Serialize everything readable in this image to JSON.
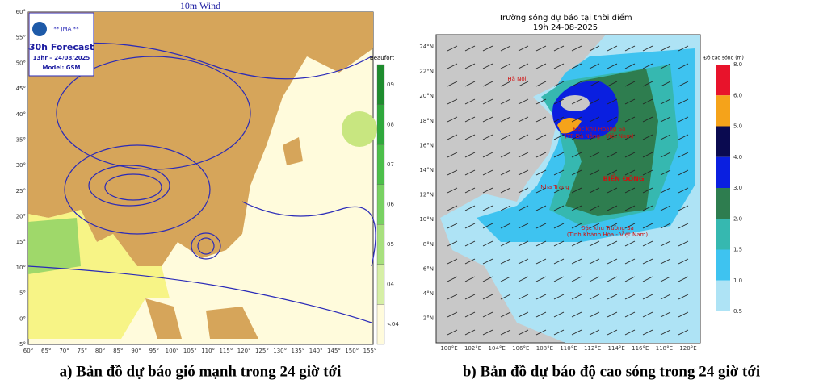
{
  "left_map": {
    "title": "10m Wind",
    "logo": {
      "agency": "** JMA **",
      "forecast": "30h Forecast",
      "time": "13hr – 24/08/2025",
      "model": "Model: GSM"
    },
    "legend": {
      "title": "Beaufort",
      "labels": [
        "09",
        "08",
        "07",
        "06",
        "05",
        "04",
        "<04"
      ]
    },
    "lat_labels": [
      "60°",
      "55°",
      "50°",
      "45°",
      "40°",
      "35°",
      "30°",
      "25°",
      "20°",
      "15°",
      "10°",
      "5°",
      "0°",
      "-5°"
    ],
    "lon_labels": [
      "60°",
      "65°",
      "70°",
      "75°",
      "80°",
      "85°",
      "90°",
      "95°",
      "100°",
      "105°",
      "110°",
      "115°",
      "120°",
      "125°",
      "130°",
      "135°",
      "140°",
      "145°",
      "150°",
      "155°"
    ],
    "caption": "a) Bản đồ dự báo gió mạnh trong 24 giờ tới"
  },
  "right_map": {
    "title": "Trường sóng dự báo tại thời điểm",
    "subtitle": "19h 24-08-2025",
    "lat_labels": [
      "24°N",
      "22°N",
      "20°N",
      "18°N",
      "16°N",
      "14°N",
      "12°N",
      "10°N",
      "8°N",
      "6°N",
      "4°N",
      "2°N"
    ],
    "lon_labels": [
      "100°E",
      "102°E",
      "104°E",
      "106°E",
      "108°E",
      "110°E",
      "112°E",
      "114°E",
      "116°E",
      "118°E",
      "120°E"
    ],
    "places": [
      "BIỂN ĐÔNG",
      "Đặc khu Hoàng Sa",
      "(TP Đà Nẵng - Việt Nam)",
      "Đặc khu Trường Sa",
      "(Tỉnh Khánh Hòa - Việt Nam)",
      "Nha Trang",
      "Hà Nội"
    ],
    "colorbar": {
      "title": "Độ cao sóng (m)",
      "labels": [
        "8.0",
        "6.0",
        "5.0",
        "4.0",
        "3.0",
        "2.0",
        "1.5",
        "1.0",
        "0.5"
      ]
    },
    "caption": "b) Bản đồ dự báo độ cao sóng trong 24 giờ tới"
  }
}
